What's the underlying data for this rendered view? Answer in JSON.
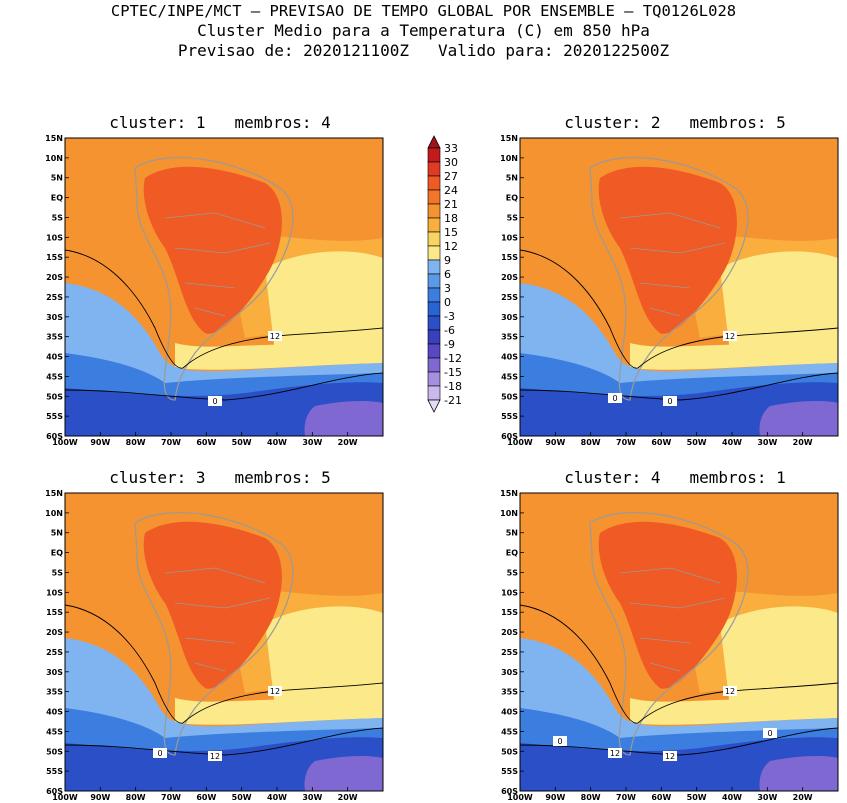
{
  "title": {
    "line1": "CPTEC/INPE/MCT – PREVISAO DE TEMPO GLOBAL POR ENSEMBLE – TQ0126L028",
    "line2": "Cluster Medio para a Temperatura (C) em 850 hPa",
    "line3": "Previsao de: 2020121100Z   Valido para: 2020122500Z"
  },
  "axes": {
    "lat_ticks": [
      "15N",
      "10N",
      "5N",
      "EQ",
      "5S",
      "10S",
      "15S",
      "20S",
      "25S",
      "30S",
      "35S",
      "40S",
      "45S",
      "50S",
      "55S",
      "60S"
    ],
    "lon_ticks": [
      "100W",
      "90W",
      "80W",
      "70W",
      "60W",
      "50W",
      "40W",
      "30W",
      "20W"
    ]
  },
  "panels": [
    {
      "title": "cluster: 1   membros: 4",
      "contour_labels": [
        "12",
        "0"
      ]
    },
    {
      "title": "cluster: 2   membros: 5",
      "contour_labels": [
        "12",
        "0",
        "0"
      ]
    },
    {
      "title": "cluster: 3   membros: 5",
      "contour_labels": [
        "12",
        "12",
        "0"
      ]
    },
    {
      "title": "cluster: 4   membros: 1",
      "contour_labels": [
        "12",
        "12",
        "12",
        "0",
        "0"
      ]
    }
  ],
  "colorbar": {
    "levels": [
      "33",
      "30",
      "27",
      "24",
      "21",
      "18",
      "15",
      "12",
      "9",
      "6",
      "3",
      "0",
      "-3",
      "-6",
      "-9",
      "-12",
      "-15",
      "-18",
      "-21"
    ],
    "colors": [
      "#a3121a",
      "#c21b1d",
      "#e03b22",
      "#f05a24",
      "#f4742a",
      "#f69331",
      "#f9ae3e",
      "#fad462",
      "#fbe98a",
      "#7fb4f0",
      "#5a9ae8",
      "#3b7ee0",
      "#2864d2",
      "#2a4fc6",
      "#3a3fbe",
      "#5848c4",
      "#7f68d2",
      "#a48fe0",
      "#c9b9ee",
      "#e6dcf8"
    ],
    "units": ""
  },
  "colors": {
    "tropics_hot": "#f05a24",
    "warm": "#f69331",
    "mild": "#f9ae3e",
    "pale_yellow": "#fbe98a",
    "cool_blue": "#7fb4f0",
    "mid_blue": "#3b7ee0",
    "deep_blue": "#2a4fc6",
    "purple": "#7f68d2",
    "coast_gray": "#9a9a9a"
  }
}
